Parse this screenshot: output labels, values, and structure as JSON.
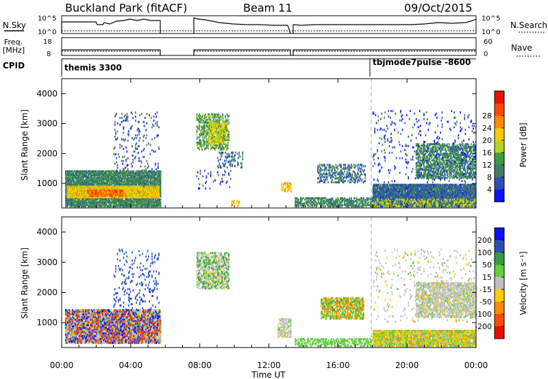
{
  "header": {
    "site": "Buckland Park (fitACF)",
    "beam": "Beam 11",
    "date": "09/Oct/2015"
  },
  "strips": {
    "nsky": {
      "label": "N.Sky",
      "ticks": [
        "10^5",
        "10^0"
      ]
    },
    "nsearch": {
      "label": "N.Search",
      "ticks": [
        "10^5",
        "10^0"
      ]
    },
    "freq": {
      "label_1": "Freq.",
      "label_2": "[MHz]",
      "ticks": [
        "18",
        "8"
      ]
    },
    "nave": {
      "label": "Nave",
      "ticks": [
        "60",
        "0"
      ]
    },
    "cpid": {
      "label": "CPID",
      "mode_1": "themis 3300",
      "mode_2": "tbjmode7pulse -8600"
    }
  },
  "colors": {
    "power": [
      "#1010ff",
      "#2a50b8",
      "#3f7a62",
      "#3f9940",
      "#b8d418",
      "#ffcc00",
      "#ff8a00",
      "#ff4a00",
      "#e81000"
    ],
    "velocity": [
      "#e81000",
      "#ff4a00",
      "#ff8a00",
      "#ffcc00",
      "#c0c0c0",
      "#5fd03c",
      "#3a9a40",
      "#2a50b8",
      "#1010ff"
    ]
  },
  "chart_data": [
    {
      "type": "heatmap",
      "panel": "power",
      "xlabel": "",
      "ylabel": "Slant Range [km]",
      "xlim": [
        0,
        24
      ],
      "ylim": [
        180,
        4500
      ],
      "y_ticks": [
        "1000",
        "2000",
        "3000",
        "4000"
      ],
      "colorbar": {
        "label": "Power [dB]",
        "range": [
          0,
          32
        ],
        "ticks": [
          "4",
          "8",
          "12",
          "16",
          "20",
          "24",
          "28"
        ]
      },
      "regions": [
        {
          "t": [
            0.2,
            5.7
          ],
          "r": [
            200,
            1400
          ],
          "v": 10,
          "density": 0.85
        },
        {
          "t": [
            0.3,
            5.6
          ],
          "r": [
            500,
            900
          ],
          "v": 19,
          "density": 0.9
        },
        {
          "t": [
            1.5,
            3.5
          ],
          "r": [
            550,
            750
          ],
          "v": 25,
          "density": 0.7
        },
        {
          "t": [
            3.0,
            5.6
          ],
          "r": [
            1400,
            3400
          ],
          "v": 6,
          "density": 0.07
        },
        {
          "t": [
            7.8,
            9.7
          ],
          "r": [
            2100,
            3300
          ],
          "v": 12,
          "density": 0.45
        },
        {
          "t": [
            8.5,
            9.6
          ],
          "r": [
            2300,
            3000
          ],
          "v": 17,
          "density": 0.55
        },
        {
          "t": [
            9.0,
            10.5
          ],
          "r": [
            1500,
            2000
          ],
          "v": 7,
          "density": 0.25
        },
        {
          "t": [
            7.8,
            9.8
          ],
          "r": [
            800,
            1400
          ],
          "v": 5,
          "density": 0.05
        },
        {
          "t": [
            9.8,
            10.3
          ],
          "r": [
            200,
            400
          ],
          "v": 22,
          "density": 0.35
        },
        {
          "t": [
            12.7,
            13.3
          ],
          "r": [
            700,
            1000
          ],
          "v": 20,
          "density": 0.55
        },
        {
          "t": [
            14.8,
            17.6
          ],
          "r": [
            1000,
            1600
          ],
          "v": 8,
          "density": 0.35
        },
        {
          "t": [
            13.5,
            18.0
          ],
          "r": [
            200,
            500
          ],
          "v": 10,
          "density": 0.6
        },
        {
          "t": [
            18.0,
            24.0
          ],
          "r": [
            200,
            950
          ],
          "v": 7,
          "density": 0.9
        },
        {
          "t": [
            18.0,
            24.0
          ],
          "r": [
            200,
            450
          ],
          "v": 16,
          "density": 0.35
        },
        {
          "t": [
            20.5,
            24.0
          ],
          "r": [
            1150,
            2300
          ],
          "v": 10,
          "density": 0.55
        },
        {
          "t": [
            18.0,
            24.0
          ],
          "r": [
            1000,
            3400
          ],
          "v": 5,
          "density": 0.05
        }
      ]
    },
    {
      "type": "heatmap",
      "panel": "velocity",
      "xlabel": "Time UT",
      "ylabel": "Slant Range [km]",
      "xlim": [
        0,
        24
      ],
      "ylim": [
        180,
        4500
      ],
      "x_ticks": [
        "00:00",
        "04:00",
        "08:00",
        "12:00",
        "16:00",
        "20:00",
        "00:00"
      ],
      "y_ticks": [
        "1000",
        "2000",
        "3000",
        "4000"
      ],
      "colorbar": {
        "label": "Velocity [m s⁻¹]",
        "ticks": [
          "200",
          "100",
          "50",
          "15",
          "-15",
          "-50",
          "-100",
          "-200"
        ]
      },
      "regions": [
        {
          "t": [
            0.2,
            5.7
          ],
          "r": [
            300,
            1400
          ],
          "v": 0,
          "density": 0.85
        },
        {
          "t": [
            0.2,
            5.7
          ],
          "r": [
            300,
            1400
          ],
          "v": 200,
          "density": 0.25
        },
        {
          "t": [
            0.2,
            5.7
          ],
          "r": [
            300,
            1400
          ],
          "v": -150,
          "density": 0.15
        },
        {
          "t": [
            3.0,
            5.6
          ],
          "r": [
            1400,
            3400
          ],
          "v": 150,
          "density": 0.08
        },
        {
          "t": [
            7.8,
            9.7
          ],
          "r": [
            2100,
            3300
          ],
          "v": 0,
          "density": 0.5
        },
        {
          "t": [
            7.8,
            9.7
          ],
          "r": [
            2100,
            3300
          ],
          "v": 60,
          "density": 0.15
        },
        {
          "t": [
            12.5,
            13.3
          ],
          "r": [
            500,
            1100
          ],
          "v": 0,
          "density": 0.5
        },
        {
          "t": [
            15.0,
            17.5
          ],
          "r": [
            1100,
            1800
          ],
          "v": -60,
          "density": 0.45
        },
        {
          "t": [
            15.0,
            17.5
          ],
          "r": [
            1100,
            1800
          ],
          "v": 40,
          "density": 0.25
        },
        {
          "t": [
            13.5,
            18.0
          ],
          "r": [
            200,
            450
          ],
          "v": 30,
          "density": 0.5
        },
        {
          "t": [
            18.0,
            24.0
          ],
          "r": [
            200,
            700
          ],
          "v": 25,
          "density": 0.8
        },
        {
          "t": [
            18.0,
            24.0
          ],
          "r": [
            200,
            700
          ],
          "v": -40,
          "density": 0.3
        },
        {
          "t": [
            20.5,
            24.0
          ],
          "r": [
            1150,
            2300
          ],
          "v": 0,
          "density": 0.6
        },
        {
          "t": [
            18.0,
            24.0
          ],
          "r": [
            1000,
            3400
          ],
          "v": 0,
          "density": 0.05
        }
      ]
    }
  ]
}
